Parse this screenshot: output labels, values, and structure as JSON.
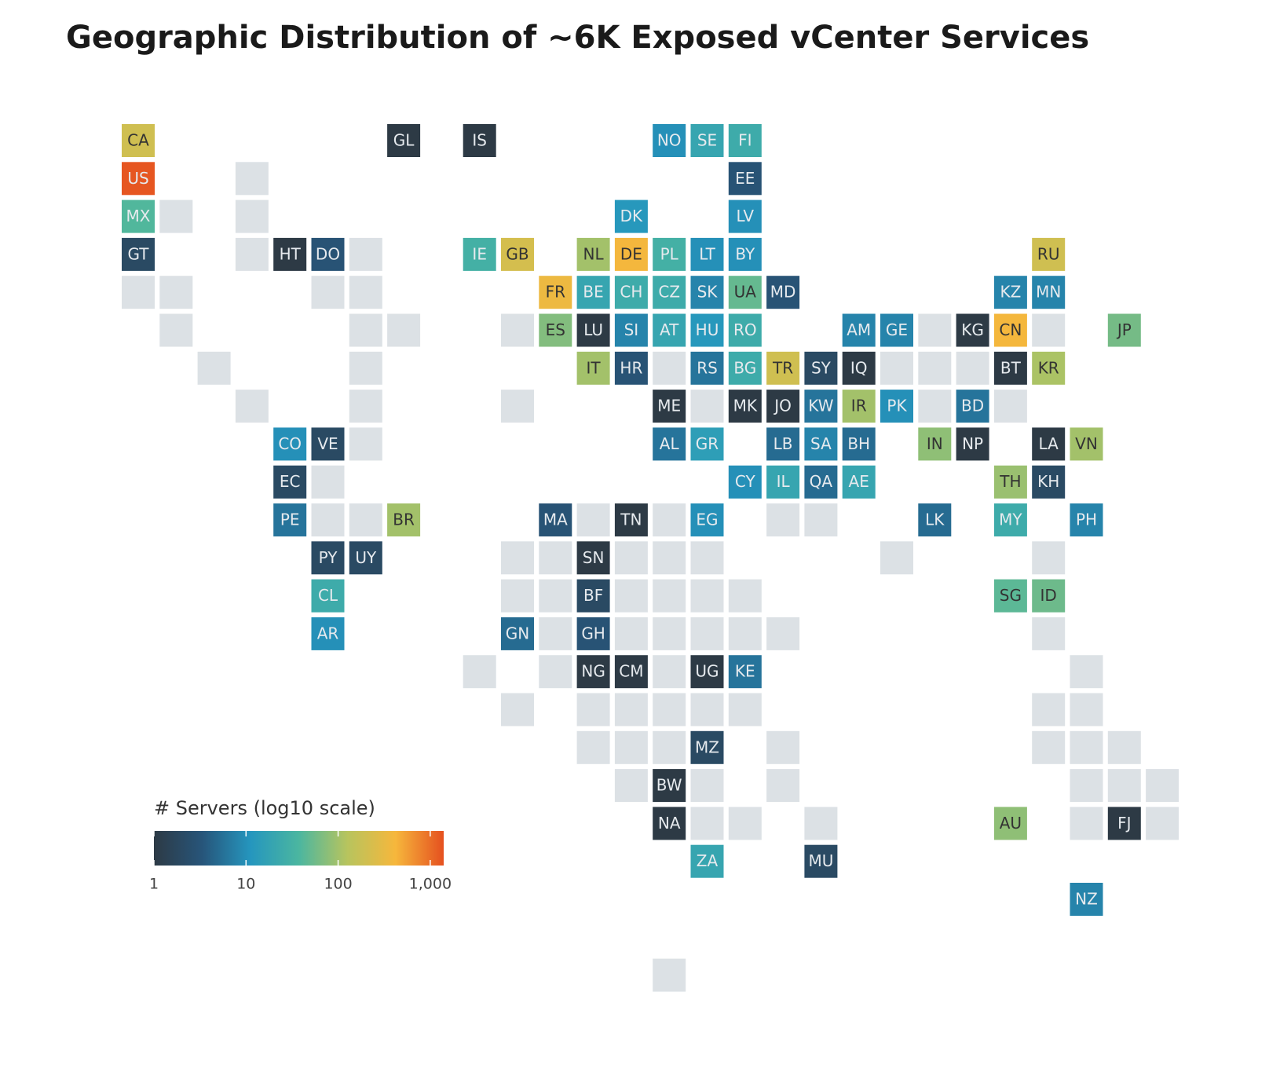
{
  "chart_data": {
    "type": "tilemap",
    "title": "Geographic Distribution of ~6K Exposed vCenter Services",
    "legend_title": "# Servers (log10 scale)",
    "log_scale": true,
    "clim": [
      1,
      1400
    ],
    "cticks": [
      1,
      10,
      100,
      {
        "value": 1000,
        "label": "1,000"
      }
    ],
    "colorscale": [
      "#2d3a45",
      "#27557a",
      "#2596be",
      "#4bb6a0",
      "#b7c45e",
      "#f6b73c",
      "#e5501f"
    ],
    "empty_color": "#dce1e5",
    "tiles": [
      {
        "label": "CA",
        "value": 200
      },
      {
        "label": "GL",
        "value": 1
      },
      {
        "label": "IS",
        "value": 1
      },
      {
        "label": "NO",
        "value": 10
      },
      {
        "label": "SE",
        "value": 20
      },
      {
        "label": "FI",
        "value": 25
      },
      {
        "label": "US",
        "value": 1300
      },
      {
        "label": "EE",
        "value": 3
      },
      {
        "label": "MX",
        "value": 40
      },
      {
        "label": "DK",
        "value": 12
      },
      {
        "label": "LV",
        "value": 10
      },
      {
        "label": "GT",
        "value": 2
      },
      {
        "label": "HT",
        "value": 1
      },
      {
        "label": "DO",
        "value": 3
      },
      {
        "label": "IE",
        "value": 30
      },
      {
        "label": "GB",
        "value": 220
      },
      {
        "label": "NL",
        "value": 100
      },
      {
        "label": "DE",
        "value": 400
      },
      {
        "label": "PL",
        "value": 30
      },
      {
        "label": "LT",
        "value": 10
      },
      {
        "label": "BY",
        "value": 10
      },
      {
        "label": "RU",
        "value": 200
      },
      {
        "label": "FR",
        "value": 350
      },
      {
        "label": "BE",
        "value": 20
      },
      {
        "label": "CH",
        "value": 25
      },
      {
        "label": "CZ",
        "value": 25
      },
      {
        "label": "SK",
        "value": 8
      },
      {
        "label": "UA",
        "value": 50
      },
      {
        "label": "MD",
        "value": 3
      },
      {
        "label": "KZ",
        "value": 8
      },
      {
        "label": "MN",
        "value": 8
      },
      {
        "label": "ES",
        "value": 70
      },
      {
        "label": "LU",
        "value": 1
      },
      {
        "label": "SI",
        "value": 8
      },
      {
        "label": "AT",
        "value": 20
      },
      {
        "label": "HU",
        "value": 12
      },
      {
        "label": "RO",
        "value": 25
      },
      {
        "label": "AM",
        "value": 8
      },
      {
        "label": "GE",
        "value": 8
      },
      {
        "label": "KG",
        "value": 1
      },
      {
        "label": "CN",
        "value": 400
      },
      {
        "label": "JP",
        "value": 60
      },
      {
        "label": "IT",
        "value": 100
      },
      {
        "label": "HR",
        "value": 3
      },
      {
        "label": "RS",
        "value": 6
      },
      {
        "label": "BG",
        "value": 25
      },
      {
        "label": "TR",
        "value": 200
      },
      {
        "label": "SY",
        "value": 2
      },
      {
        "label": "IQ",
        "value": 1
      },
      {
        "label": "BT",
        "value": 1
      },
      {
        "label": "KR",
        "value": 110
      },
      {
        "label": "ME",
        "value": 1
      },
      {
        "label": "MK",
        "value": 1
      },
      {
        "label": "JO",
        "value": 1
      },
      {
        "label": "KW",
        "value": 6
      },
      {
        "label": "IR",
        "value": 100
      },
      {
        "label": "PK",
        "value": 10
      },
      {
        "label": "BD",
        "value": 6
      },
      {
        "label": "CO",
        "value": 10
      },
      {
        "label": "VE",
        "value": 2
      },
      {
        "label": "AL",
        "value": 6
      },
      {
        "label": "GR",
        "value": 15
      },
      {
        "label": "LB",
        "value": 5
      },
      {
        "label": "SA",
        "value": 8
      },
      {
        "label": "BH",
        "value": 5
      },
      {
        "label": "IN",
        "value": 80
      },
      {
        "label": "NP",
        "value": 1
      },
      {
        "label": "LA",
        "value": 1
      },
      {
        "label": "VN",
        "value": 100
      },
      {
        "label": "EC",
        "value": 2
      },
      {
        "label": "CY",
        "value": 10
      },
      {
        "label": "IL",
        "value": 20
      },
      {
        "label": "QA",
        "value": 5
      },
      {
        "label": "AE",
        "value": 20
      },
      {
        "label": "TH",
        "value": 90
      },
      {
        "label": "KH",
        "value": 2
      },
      {
        "label": "PE",
        "value": 6
      },
      {
        "label": "BR",
        "value": 100
      },
      {
        "label": "MA",
        "value": 3
      },
      {
        "label": "TN",
        "value": 1
      },
      {
        "label": "EG",
        "value": 10
      },
      {
        "label": "LK",
        "value": 5
      },
      {
        "label": "MY",
        "value": 25
      },
      {
        "label": "PH",
        "value": 8
      },
      {
        "label": "PY",
        "value": 2
      },
      {
        "label": "UY",
        "value": 2
      },
      {
        "label": "SN",
        "value": 1
      },
      {
        "label": "CL",
        "value": 25
      },
      {
        "label": "BF",
        "value": 2
      },
      {
        "label": "SG",
        "value": 45
      },
      {
        "label": "ID",
        "value": 55
      },
      {
        "label": "AR",
        "value": 10
      },
      {
        "label": "GN",
        "value": 5
      },
      {
        "label": "GH",
        "value": 3
      },
      {
        "label": "NG",
        "value": 1
      },
      {
        "label": "CM",
        "value": 1
      },
      {
        "label": "UG",
        "value": 1
      },
      {
        "label": "KE",
        "value": 6
      },
      {
        "label": "MZ",
        "value": 2
      },
      {
        "label": "BW",
        "value": 1
      },
      {
        "label": "NA",
        "value": 1
      },
      {
        "label": "AU",
        "value": 80
      },
      {
        "label": "FJ",
        "value": 1
      },
      {
        "label": "ZA",
        "value": 20
      },
      {
        "label": "MU",
        "value": 2
      },
      {
        "label": "NZ",
        "value": 8
      }
    ]
  }
}
